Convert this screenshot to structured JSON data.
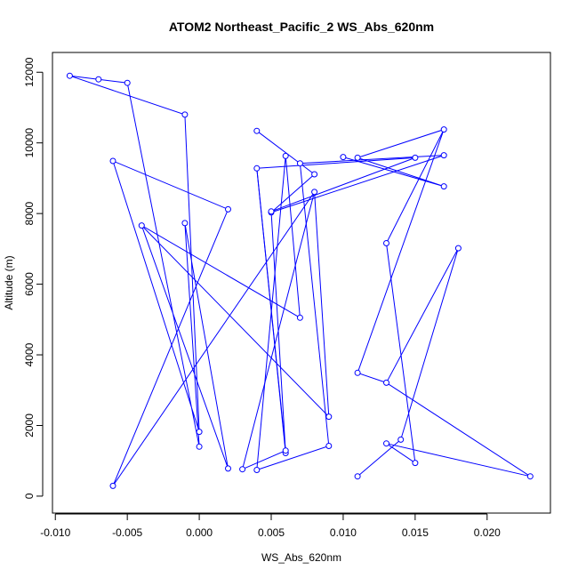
{
  "chart_data": {
    "type": "line",
    "title": "ATOM2 Northeast_Pacific_2 WS_Abs_620nm",
    "xlabel": "WS_Abs_620nm",
    "ylabel": "Altitude (m)",
    "xlim": [
      -0.0102,
      0.0244
    ],
    "ylim": [
      -480,
      12560
    ],
    "x_ticks": [
      -0.01,
      -0.005,
      0,
      0.005,
      0.01,
      0.015,
      0.02
    ],
    "x_tick_labels": [
      "-0.010",
      "-0.005",
      "0.000",
      "0.005",
      "0.010",
      "0.015",
      "0.020"
    ],
    "y_ticks": [
      0,
      2000,
      4000,
      6000,
      8000,
      10000,
      12000
    ],
    "y_tick_labels": [
      "0",
      "2000",
      "4000",
      "6000",
      "8000",
      "10000",
      "12000"
    ],
    "grid": false,
    "color": "#0000ff",
    "marker": "open-circle",
    "points": [
      {
        "x": -0.009,
        "y": 11900
      },
      {
        "x": -0.007,
        "y": 11800
      },
      {
        "x": -0.005,
        "y": 11700
      },
      {
        "x": 0.0,
        "y": 1400
      },
      {
        "x": -0.001,
        "y": 7730
      },
      {
        "x": 0.002,
        "y": 780
      },
      {
        "x": -0.004,
        "y": 7660
      },
      {
        "x": 0.009,
        "y": 2250
      },
      {
        "x": 0.008,
        "y": 8610
      },
      {
        "x": -0.006,
        "y": 290
      },
      {
        "x": 0.002,
        "y": 8120
      },
      {
        "x": -0.006,
        "y": 9490
      },
      {
        "x": 0.0,
        "y": 1820
      },
      {
        "x": -0.001,
        "y": 10800
      },
      {
        "x": -0.009,
        "y": 11900
      }
    ],
    "path2": [
      {
        "x": 0.004,
        "y": 10340
      },
      {
        "x": 0.008,
        "y": 9110
      },
      {
        "x": 0.005,
        "y": 8030
      },
      {
        "x": 0.017,
        "y": 9650
      },
      {
        "x": 0.007,
        "y": 9420
      },
      {
        "x": 0.009,
        "y": 1420
      },
      {
        "x": 0.004,
        "y": 740
      },
      {
        "x": 0.006,
        "y": 9630
      },
      {
        "x": 0.007,
        "y": 5050
      },
      {
        "x": -0.004,
        "y": 7660
      }
    ],
    "path3": [
      {
        "x": 0.004,
        "y": 9280
      },
      {
        "x": 0.006,
        "y": 1220
      },
      {
        "x": 0.005,
        "y": 8060
      },
      {
        "x": 0.015,
        "y": 9580
      },
      {
        "x": 0.004,
        "y": 9280
      }
    ],
    "path4": [
      {
        "x": 0.01,
        "y": 9600
      },
      {
        "x": 0.017,
        "y": 8770
      },
      {
        "x": 0.011,
        "y": 9580
      },
      {
        "x": 0.017,
        "y": 10380
      },
      {
        "x": 0.011,
        "y": 3490
      },
      {
        "x": 0.013,
        "y": 3210
      }
    ],
    "path5": [
      {
        "x": 0.013,
        "y": 7160
      },
      {
        "x": 0.017,
        "y": 10380
      }
    ],
    "path6": [
      {
        "x": 0.013,
        "y": 7160
      },
      {
        "x": 0.015,
        "y": 940
      },
      {
        "x": 0.013,
        "y": 1490
      },
      {
        "x": 0.023,
        "y": 560
      },
      {
        "x": 0.013,
        "y": 3210
      },
      {
        "x": 0.018,
        "y": 7020
      },
      {
        "x": 0.014,
        "y": 1600
      },
      {
        "x": 0.011,
        "y": 560
      }
    ],
    "path7": [
      {
        "x": 0.003,
        "y": 760
      },
      {
        "x": 0.008,
        "y": 8610
      }
    ],
    "path8": [
      {
        "x": 0.003,
        "y": 760
      },
      {
        "x": 0.006,
        "y": 1290
      },
      {
        "x": 0.004,
        "y": 9280
      }
    ]
  }
}
